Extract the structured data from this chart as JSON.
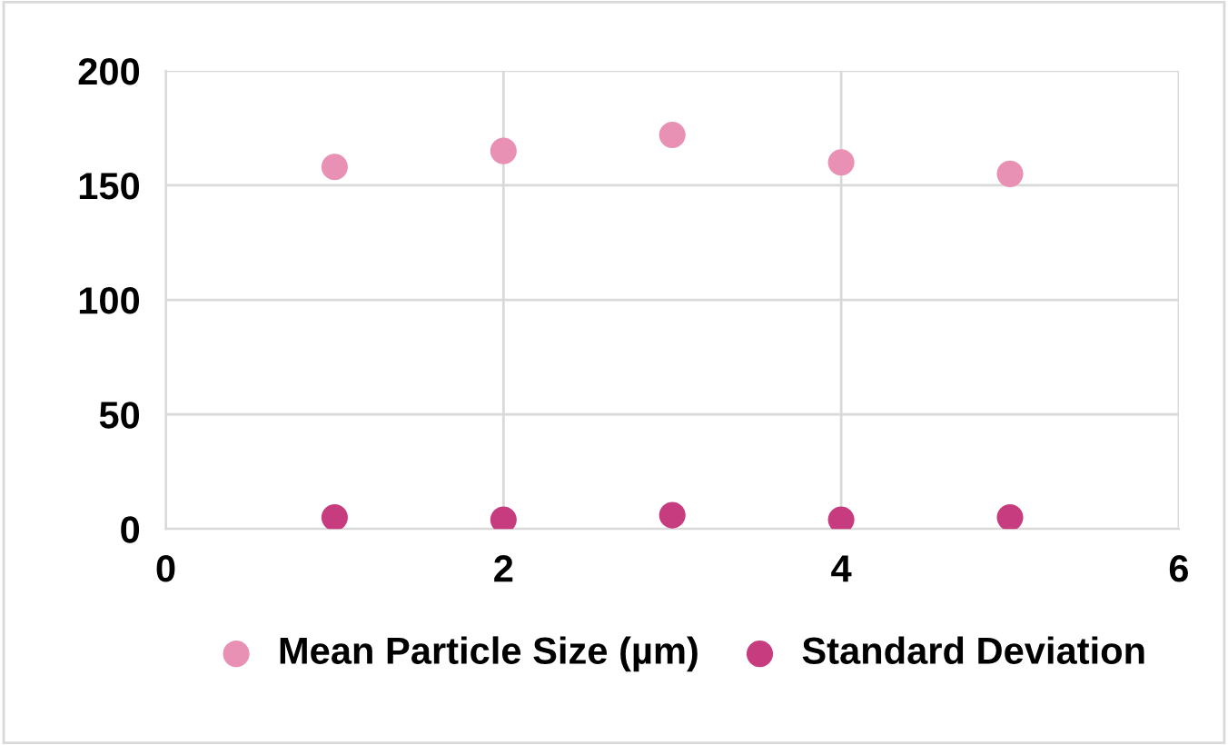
{
  "chart_data": {
    "type": "scatter",
    "x": [
      1,
      2,
      3,
      4,
      5
    ],
    "series": [
      {
        "name": "Mean Particle Size (µm)",
        "color": "#e891b4",
        "values": [
          158,
          165,
          172,
          160,
          155
        ]
      },
      {
        "name": "Standard Deviation",
        "color": "#c73b7f",
        "values": [
          5,
          4,
          6,
          4,
          5
        ]
      }
    ],
    "xlim": [
      0,
      6
    ],
    "xticks": [
      0,
      2,
      4,
      6
    ],
    "ylim": [
      0,
      200
    ],
    "yticks": [
      0,
      50,
      100,
      150,
      200
    ],
    "grid": true,
    "legend": "bottom",
    "marker": "circle"
  }
}
